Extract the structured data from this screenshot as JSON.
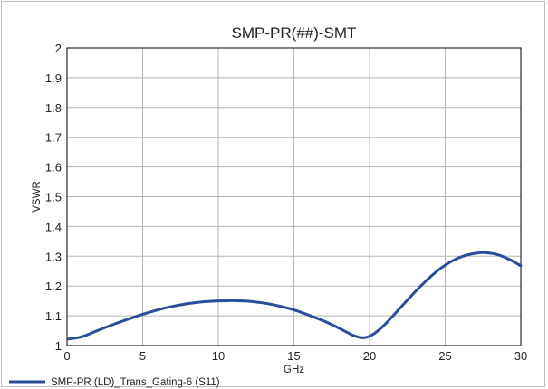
{
  "chart_data": {
    "type": "line",
    "title": "SMP-PR(##)-SMT",
    "xlabel": "GHz",
    "ylabel": "VSWR",
    "xlim": [
      0,
      30
    ],
    "ylim": [
      1,
      2
    ],
    "xticks": [
      0,
      5,
      10,
      15,
      20,
      25,
      30
    ],
    "yticks": [
      1,
      1.1,
      1.2,
      1.3,
      1.4,
      1.5,
      1.6,
      1.7,
      1.8,
      1.9,
      2
    ],
    "xtick_labels": [
      "0",
      "5",
      "10",
      "15",
      "20",
      "25",
      "30"
    ],
    "ytick_labels": [
      "1",
      "1.1",
      "1.2",
      "1.3",
      "1.4",
      "1.5",
      "1.6",
      "1.7",
      "1.8",
      "1.9",
      "2"
    ],
    "grid": true,
    "legend_position": "bottom-left",
    "series": [
      {
        "name": "SMP-PR (LD)_Trans_Gating-6 (S11)",
        "color": "#2a4d9b",
        "x": [
          0.1,
          1,
          2,
          3,
          4,
          5,
          6,
          7,
          8,
          9,
          10,
          11,
          12,
          13,
          14,
          15,
          16,
          17,
          18,
          18.8,
          19.4,
          19.8,
          20.3,
          21,
          22,
          23,
          24,
          25,
          26,
          27,
          27.7,
          28.5,
          29.3,
          30
        ],
        "y": [
          1.022,
          1.03,
          1.05,
          1.07,
          1.088,
          1.105,
          1.12,
          1.132,
          1.141,
          1.147,
          1.15,
          1.151,
          1.149,
          1.143,
          1.133,
          1.12,
          1.102,
          1.082,
          1.058,
          1.037,
          1.027,
          1.028,
          1.04,
          1.07,
          1.125,
          1.18,
          1.23,
          1.27,
          1.297,
          1.31,
          1.312,
          1.305,
          1.288,
          1.268
        ]
      }
    ]
  }
}
